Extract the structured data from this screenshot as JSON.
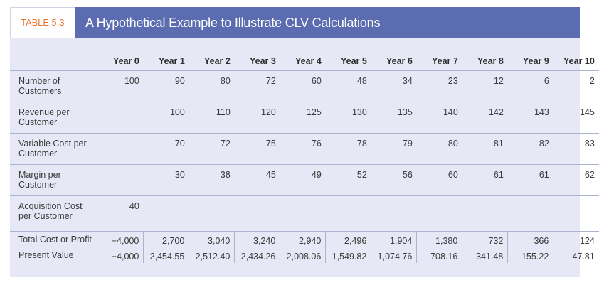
{
  "header": {
    "table_label": "TABLE 5.3",
    "title": "A Hypothetical Example to Illustrate CLV Calculations"
  },
  "columns": [
    "Year 0",
    "Year 1",
    "Year 2",
    "Year 3",
    "Year 4",
    "Year 5",
    "Year 6",
    "Year 7",
    "Year 8",
    "Year 9",
    "Year 10"
  ],
  "rows": [
    {
      "label": "Number of Customers",
      "cells": [
        "100",
        "90",
        "80",
        "72",
        "60",
        "48",
        "34",
        "23",
        "12",
        "6",
        "2"
      ]
    },
    {
      "label": "Revenue per Customer",
      "cells": [
        "",
        "100",
        "110",
        "120",
        "125",
        "130",
        "135",
        "140",
        "142",
        "143",
        "145"
      ]
    },
    {
      "label": "Variable Cost per Customer",
      "cells": [
        "",
        "70",
        "72",
        "75",
        "76",
        "78",
        "79",
        "80",
        "81",
        "82",
        "83"
      ]
    },
    {
      "label": "Margin per Customer",
      "cells": [
        "",
        "30",
        "38",
        "45",
        "49",
        "52",
        "56",
        "60",
        "61",
        "61",
        "62"
      ]
    },
    {
      "label": "Acquisition Cost per Customer",
      "cells": [
        "40",
        "",
        "",
        "",
        "",
        "",
        "",
        "",
        "",
        "",
        ""
      ]
    },
    {
      "label": "Total Cost or Profit",
      "cells": [
        "−4,000",
        "2,700",
        "3,040",
        "3,240",
        "2,940",
        "2,496",
        "1,904",
        "1,380",
        "732",
        "366",
        "124"
      ]
    },
    {
      "label": "Present Value",
      "cells": [
        "−4,000",
        "2,454.55",
        "2,512.40",
        "2,434.26",
        "2,008.06",
        "1,549.82",
        "1,074.76",
        "708.16",
        "341.48",
        "155.22",
        "47.81"
      ]
    }
  ],
  "colors": {
    "title_bar": "#5b6db0",
    "table_label_text": "#e8732a",
    "table_background": "#e6e9f5",
    "rule": "#aeb4cf"
  }
}
